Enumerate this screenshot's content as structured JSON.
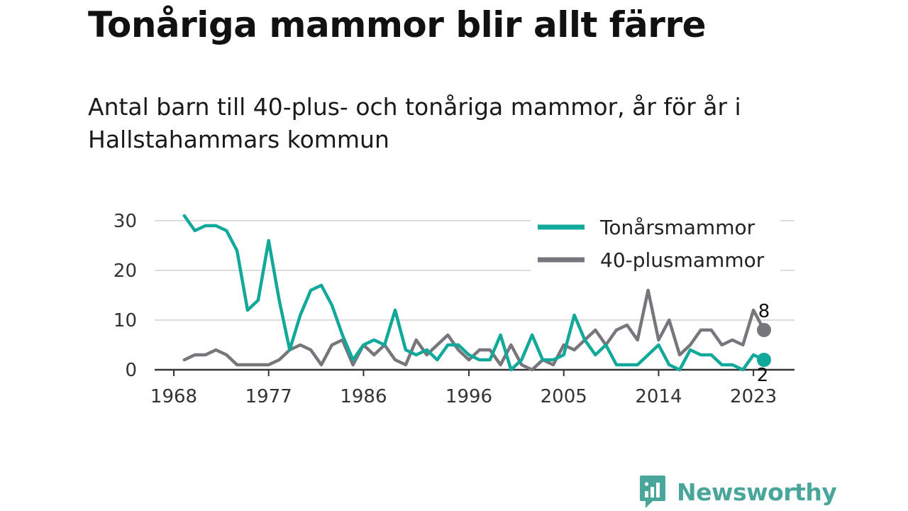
{
  "title": "Tonåriga mammor blir allt färre",
  "subtitle": "Antal barn till 40-plus- och tonåriga mammor, år för år i Hallstahammars kommun",
  "brand": "Newsworthy",
  "colors": {
    "teens": "#12a89a",
    "forty_plus": "#76767c",
    "grid": "#dddddd",
    "axis": "#333333",
    "brand": "#4aa69b"
  },
  "chart_data": {
    "type": "line",
    "title": "Tonåriga mammor blir allt färre",
    "subtitle": "Antal barn till 40-plus- och tonåriga mammor, år för år i Hallstahammars kommun",
    "xlabel": "",
    "ylabel": "",
    "x_ticks": [
      "1968",
      "1977",
      "1986",
      "1996",
      "2005",
      "2014",
      "2023"
    ],
    "y_ticks": [
      "0",
      "10",
      "20",
      "30"
    ],
    "ylim": [
      0,
      31
    ],
    "xlim": [
      1968,
      2024
    ],
    "grid": true,
    "legend_position": "top-right",
    "x": [
      1969,
      1970,
      1971,
      1972,
      1973,
      1974,
      1975,
      1976,
      1977,
      1978,
      1979,
      1980,
      1981,
      1982,
      1983,
      1984,
      1985,
      1986,
      1987,
      1988,
      1989,
      1990,
      1991,
      1992,
      1993,
      1994,
      1995,
      1996,
      1997,
      1998,
      1999,
      2000,
      2001,
      2002,
      2003,
      2004,
      2005,
      2006,
      2007,
      2008,
      2009,
      2010,
      2011,
      2012,
      2013,
      2014,
      2015,
      2016,
      2017,
      2018,
      2019,
      2020,
      2021,
      2022,
      2023,
      2024
    ],
    "series": [
      {
        "name": "Tonårsmammor",
        "color": "#12a89a",
        "values": [
          31,
          28,
          29,
          29,
          28,
          24,
          12,
          14,
          26,
          14,
          4,
          11,
          16,
          17,
          13,
          7,
          2,
          5,
          6,
          5,
          12,
          4,
          3,
          4,
          2,
          5,
          5,
          3,
          2,
          2,
          7,
          0,
          2,
          7,
          2,
          2,
          3,
          11,
          6,
          3,
          5,
          1,
          1,
          1,
          3,
          5,
          1,
          0,
          4,
          3,
          3,
          1,
          1,
          0,
          3,
          2
        ]
      },
      {
        "name": "40-plusmammor",
        "color": "#76767c",
        "values": [
          2,
          3,
          3,
          4,
          3,
          1,
          1,
          1,
          1,
          2,
          4,
          5,
          4,
          1,
          5,
          6,
          1,
          5,
          3,
          5,
          2,
          1,
          6,
          3,
          5,
          7,
          4,
          2,
          4,
          4,
          1,
          5,
          1,
          0,
          2,
          1,
          5,
          4,
          6,
          8,
          5,
          8,
          9,
          6,
          16,
          6,
          10,
          3,
          5,
          8,
          8,
          5,
          6,
          5,
          12,
          8
        ]
      }
    ],
    "end_labels": [
      "8",
      "2"
    ]
  }
}
